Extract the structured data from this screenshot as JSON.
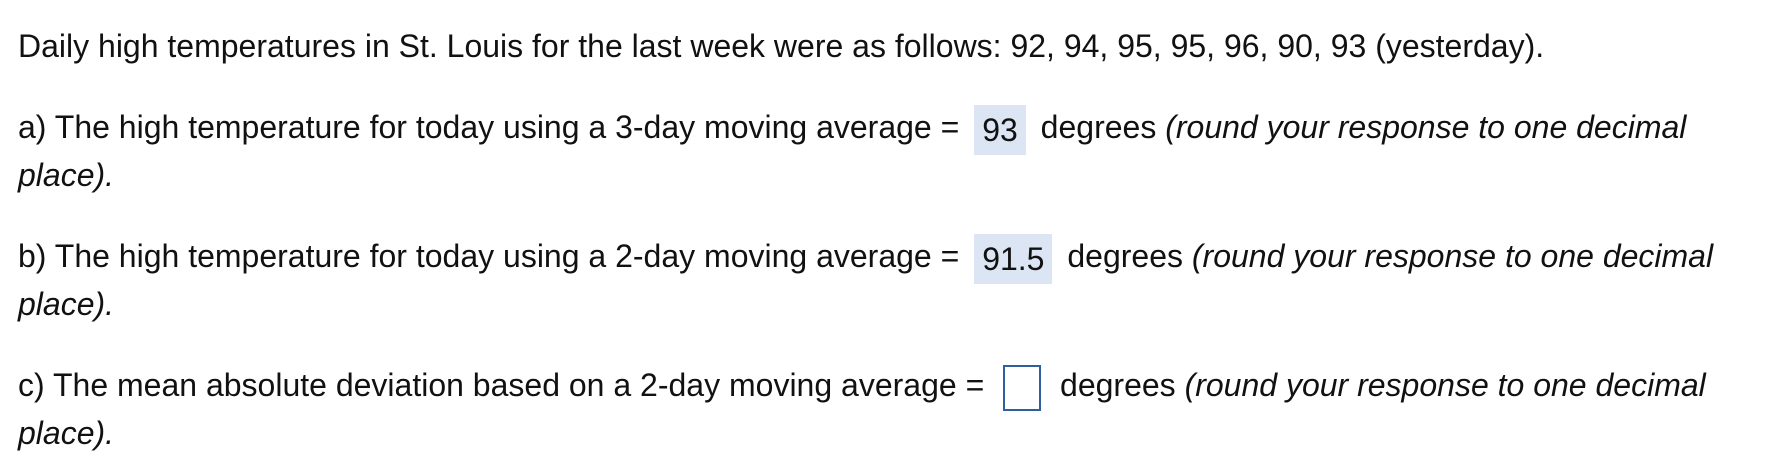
{
  "intro": "Daily high temperatures in St. Louis for the last week were as follows: 92, 94, 95, 95, 96, 90, 93 (yesterday).",
  "questions": [
    {
      "prefix": "a) The high temperature for today using a 3-day moving average =",
      "answer": "93",
      "unit": "degrees",
      "instruction_line1": "(round your response to one decimal",
      "instruction_line2": "place)."
    },
    {
      "prefix": "b) The high temperature for today using a 2-day moving average =",
      "answer": "91.5",
      "unit": "degrees",
      "instruction_line1": "(round your response to one decimal",
      "instruction_line2": "place)."
    },
    {
      "prefix": "c) The mean absolute deviation based on a 2-day moving average =",
      "answer": "",
      "unit": "degrees",
      "instruction_line1": "(round your response to one decimal",
      "instruction_line2": "place)."
    }
  ],
  "colors": {
    "answer_highlight": "#dbe5f3",
    "input_border": "#2f5f9e"
  }
}
